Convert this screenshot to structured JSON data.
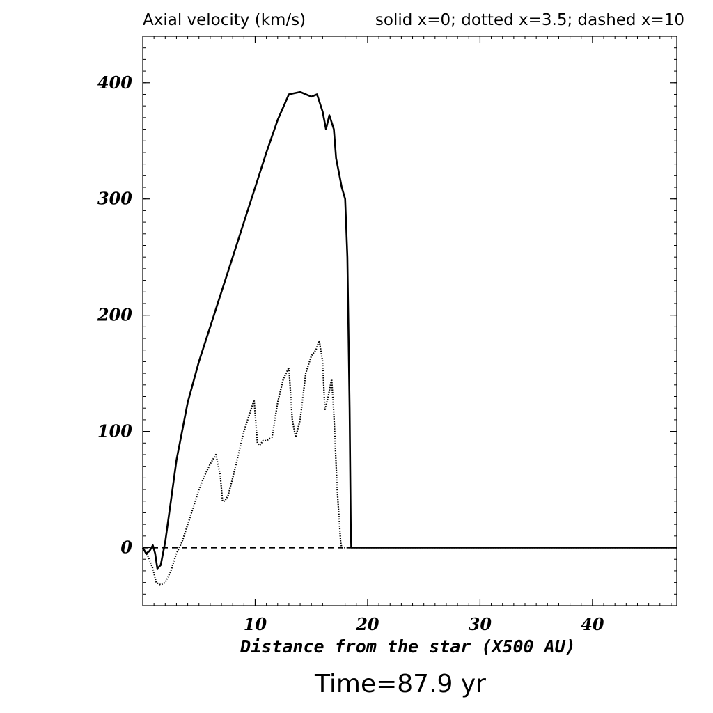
{
  "chart_data": {
    "type": "line",
    "title": "Axial velocity (km/s)",
    "legend_text": "solid x=0; dotted x=3.5; dashed x=10",
    "xlabel": "Distance from the star (X500 AU)",
    "footer": "Time=87.9 yr",
    "xlim": [
      0,
      47.5
    ],
    "ylim": [
      -50,
      440
    ],
    "x_ticks": [
      10,
      20,
      30,
      40
    ],
    "y_ticks": [
      0,
      100,
      200,
      300,
      400
    ],
    "series": [
      {
        "name": "solid x=0",
        "style": "solid",
        "x": [
          0,
          0.3,
          0.6,
          0.9,
          1.1,
          1.3,
          1.6,
          2.0,
          2.5,
          3.0,
          3.5,
          4.0,
          5.0,
          6.0,
          7.0,
          8.0,
          9.0,
          10.0,
          11.0,
          12.0,
          13.0,
          14.0,
          15.0,
          15.5,
          16.0,
          16.3,
          16.6,
          17.0,
          17.2,
          17.5,
          17.7,
          18.0,
          18.2,
          18.4,
          18.5,
          18.55,
          19,
          20,
          30,
          40,
          47.5
        ],
        "y": [
          0,
          -5,
          -3,
          2,
          -5,
          -18,
          -15,
          5,
          40,
          75,
          100,
          125,
          160,
          190,
          220,
          250,
          280,
          310,
          340,
          368,
          390,
          392,
          388,
          390,
          375,
          360,
          372,
          360,
          335,
          320,
          310,
          300,
          250,
          120,
          20,
          0,
          0,
          0,
          0,
          0,
          0
        ]
      },
      {
        "name": "dotted x=3.5",
        "style": "dotted",
        "x": [
          0,
          0.5,
          0.9,
          1.2,
          1.6,
          2.0,
          2.5,
          3.0,
          3.5,
          4.0,
          4.5,
          5.0,
          5.5,
          6.0,
          6.5,
          6.9,
          7.1,
          7.3,
          7.6,
          8.0,
          8.5,
          9.0,
          9.5,
          9.9,
          10.2,
          10.4,
          10.7,
          11.0,
          11.5,
          12.0,
          12.5,
          13.0,
          13.3,
          13.6,
          14.0,
          14.5,
          15.0,
          15.4,
          15.7,
          16.0,
          16.2,
          16.5,
          16.8,
          17.0,
          17.3,
          17.5,
          17.6,
          17.7,
          18.0,
          20,
          47.5
        ],
        "y": [
          0,
          -8,
          -18,
          -30,
          -32,
          -30,
          -20,
          -5,
          5,
          20,
          35,
          50,
          62,
          72,
          80,
          62,
          40,
          40,
          45,
          60,
          80,
          100,
          115,
          127,
          90,
          88,
          92,
          92,
          95,
          125,
          145,
          155,
          110,
          95,
          110,
          150,
          165,
          170,
          178,
          160,
          118,
          130,
          145,
          115,
          50,
          20,
          5,
          0,
          0,
          0,
          0
        ]
      },
      {
        "name": "dashed x=10",
        "style": "dashed",
        "x": [
          0,
          18.5
        ],
        "y": [
          0,
          0
        ]
      }
    ]
  }
}
